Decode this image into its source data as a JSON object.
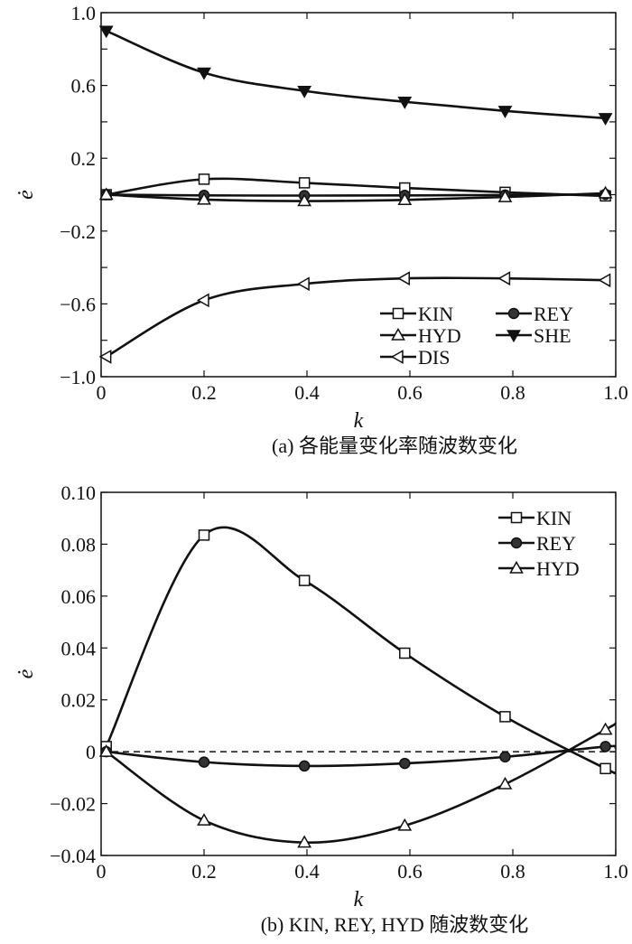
{
  "chart_data": [
    {
      "type": "line",
      "title": "(a) 各能量变化率随波数变化",
      "xlabel": "k",
      "ylabel": "ė",
      "xlim": [
        0,
        1.0
      ],
      "ylim": [
        -1.0,
        1.0
      ],
      "xticks": [
        "0",
        "0.2",
        "0.4",
        "0.6",
        "0.8",
        "1.0"
      ],
      "yticks": [
        "1.0",
        "0.6",
        "0.2",
        "−0.2",
        "−0.6",
        "−1.0"
      ],
      "ytick_values": [
        1.0,
        0.6,
        0.2,
        -0.2,
        -0.6,
        -1.0
      ],
      "legend_position": "bottom-right",
      "x": [
        0.01,
        0.2,
        0.395,
        0.59,
        0.785,
        0.98
      ],
      "series": [
        {
          "name": "KIN",
          "marker": "square-open",
          "values": [
            0.0,
            0.085,
            0.065,
            0.037,
            0.013,
            -0.007
          ]
        },
        {
          "name": "REY",
          "marker": "circle-filled",
          "values": [
            0.0,
            -0.004,
            -0.005,
            -0.004,
            -0.002,
            0.002
          ]
        },
        {
          "name": "HYD",
          "marker": "triangle-up-open",
          "values": [
            0.0,
            -0.027,
            -0.035,
            -0.029,
            -0.013,
            0.008
          ]
        },
        {
          "name": "SHE",
          "marker": "triangle-down-filled",
          "values": [
            0.9,
            0.67,
            0.57,
            0.51,
            0.46,
            0.42
          ]
        },
        {
          "name": "DIS",
          "marker": "triangle-left-open",
          "values": [
            -0.89,
            -0.58,
            -0.49,
            -0.46,
            -0.46,
            -0.47
          ]
        }
      ]
    },
    {
      "type": "line",
      "title": "(b) KIN, REY, HYD 随波数变化",
      "xlabel": "k",
      "ylabel": "ė",
      "xlim": [
        0,
        1.0
      ],
      "ylim": [
        -0.04,
        0.1
      ],
      "xticks": [
        "0",
        "0.2",
        "0.4",
        "0.6",
        "0.8",
        "1.0"
      ],
      "yticks": [
        "0.10",
        "0.08",
        "0.06",
        "0.04",
        "0.02",
        "0",
        "−0.02",
        "−0.04"
      ],
      "ytick_values": [
        0.1,
        0.08,
        0.06,
        0.04,
        0.02,
        0,
        -0.02,
        -0.04
      ],
      "legend_position": "top-right",
      "reference_line": {
        "y": 0,
        "style": "dashed"
      },
      "x": [
        0.01,
        0.2,
        0.395,
        0.59,
        0.785,
        0.98
      ],
      "series": [
        {
          "name": "KIN",
          "marker": "square-open",
          "values": [
            0.002,
            0.0835,
            0.066,
            0.038,
            0.0135,
            -0.0065
          ],
          "end_value_at_1": -0.008
        },
        {
          "name": "REY",
          "marker": "circle-filled",
          "values": [
            0.0,
            -0.004,
            -0.0055,
            -0.0045,
            -0.002,
            0.002
          ],
          "end_value_at_1": 0.0015
        },
        {
          "name": "HYD",
          "marker": "triangle-up-open",
          "values": [
            0.0,
            -0.0265,
            -0.035,
            -0.0285,
            -0.0125,
            0.0085
          ],
          "end_value_at_1": 0.011
        }
      ]
    }
  ]
}
